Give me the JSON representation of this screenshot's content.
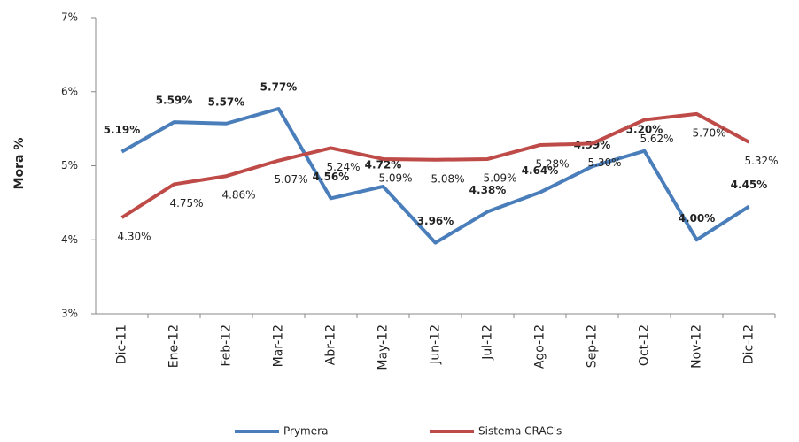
{
  "chart_data": {
    "type": "line",
    "y_label": "Mora %",
    "categories": [
      "Dic-11",
      "Ene-12",
      "Feb-12",
      "Mar-12",
      "Abr-12",
      "May-12",
      "Jun-12",
      "Jul-12",
      "Ago-12",
      "Sep-12",
      "Oct-12",
      "Nov-12",
      "Dic-12"
    ],
    "series": [
      {
        "name": "Prymera",
        "color": "#4a7ebb",
        "values": [
          5.19,
          5.59,
          5.57,
          5.77,
          4.56,
          4.72,
          3.96,
          4.38,
          4.64,
          4.99,
          5.2,
          4.0,
          4.45
        ],
        "value_labels": [
          "5.19%",
          "5.59%",
          "5.57%",
          "5.77%",
          "4.56%",
          "4.72%",
          "3.96%",
          "4.38%",
          "4.64%",
          "4.99%",
          "5.20%",
          "4.00%",
          "4.45%"
        ]
      },
      {
        "name": "Sistema CRAC's",
        "color": "#be4b48",
        "values": [
          4.3,
          4.75,
          4.86,
          5.07,
          5.24,
          5.09,
          5.08,
          5.09,
          5.28,
          5.3,
          5.62,
          5.7,
          5.32
        ],
        "value_labels": [
          "4.30%",
          "4.75%",
          "4.86%",
          "5.07%",
          "5.24%",
          "5.09%",
          "5.08%",
          "5.09%",
          "5.28%",
          "5.30%",
          "5.62%",
          "5.70%",
          "5.32%"
        ]
      }
    ],
    "ylim": [
      3,
      7
    ],
    "yticks": [
      {
        "value": 3,
        "label": "3%"
      },
      {
        "value": 4,
        "label": "4%"
      },
      {
        "value": 5,
        "label": "5%"
      },
      {
        "value": 6,
        "label": "6%"
      },
      {
        "value": 7,
        "label": "7%"
      }
    ],
    "grid": false,
    "legend": "bottom"
  }
}
